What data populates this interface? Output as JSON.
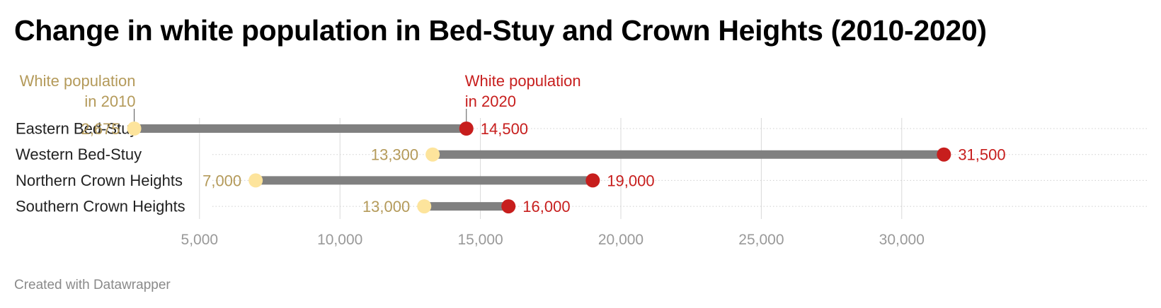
{
  "title": "Change in white population in Bed-Stuy and Crown Heights (2010-2020)",
  "footer": "Created with Datawrapper",
  "colors": {
    "value_2010": "#fde49c",
    "label_2010": "#b49a5a",
    "value_2020": "#c71e1d",
    "label_2020": "#c71e1d",
    "bar": "#808080",
    "grid": "#d9d9d9",
    "tick": "#999999",
    "category": "#222222"
  },
  "chart_data": {
    "type": "dot_range",
    "categories": [
      "Eastern Bed-Stuy",
      "Western Bed-Stuy",
      "Northern Crown Heights",
      "Southern Crown Heights"
    ],
    "series": [
      {
        "name": "White population in 2010",
        "values": [
          2675,
          13300,
          7000,
          13000
        ],
        "labels": [
          "2,675",
          "13,300",
          "7,000",
          "13,000"
        ]
      },
      {
        "name": "White population in 2020",
        "values": [
          14500,
          31500,
          19000,
          16000
        ],
        "labels": [
          "14,500",
          "31,500",
          "19,000",
          "16,000"
        ]
      }
    ],
    "legend": {
      "label_2010": [
        "White population",
        "in 2010"
      ],
      "label_2020": [
        "White population",
        "in 2020"
      ]
    },
    "x_ticks": [
      5000,
      10000,
      15000,
      20000,
      25000,
      30000
    ],
    "x_tick_labels": [
      "5,000",
      "10,000",
      "15,000",
      "20,000",
      "25,000",
      "30,000"
    ],
    "xlim": [
      0,
      34000
    ],
    "grid": true
  }
}
